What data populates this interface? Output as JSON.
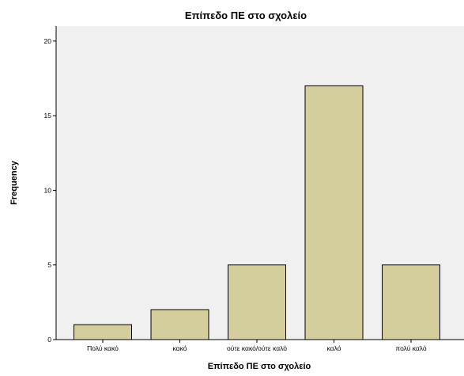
{
  "chart_data": {
    "type": "bar",
    "title": "Επίπεδο ΠΕ στο σχολείο",
    "xlabel": "Επίπεδο ΠΕ στο σχολείο",
    "ylabel": "Frequency",
    "categories": [
      "Πολύ κακό",
      "κακό",
      "ούτε κακό/ούτε καλό",
      "καλό",
      "πολύ καλό"
    ],
    "values": [
      1,
      2,
      5,
      17,
      5
    ],
    "ylim": [
      0,
      21
    ],
    "yticks": [
      0,
      5,
      10,
      15,
      20
    ],
    "grid": false,
    "colors": {
      "plot_background": "#f0f0f0",
      "bar_fill": "#d3ce9b",
      "bar_stroke": "#000000"
    }
  }
}
